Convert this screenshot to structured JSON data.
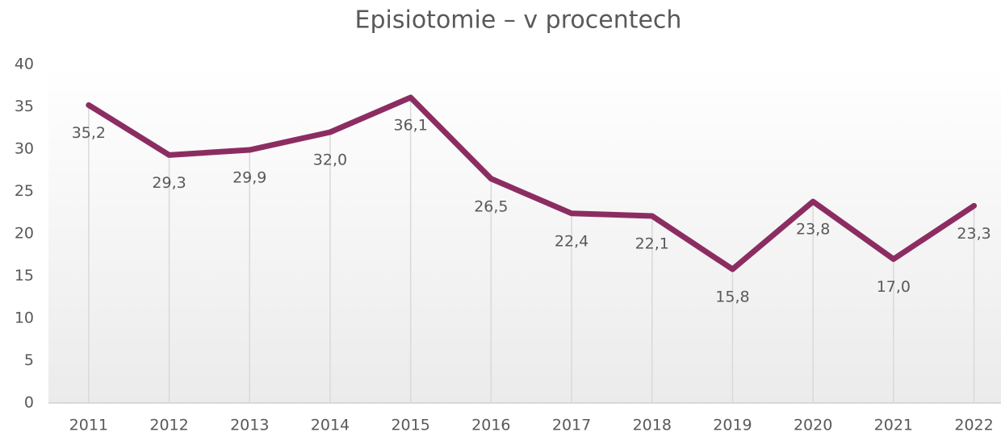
{
  "chart_data": {
    "type": "line",
    "title": "Episiotomie – v procentech",
    "categories": [
      "2011",
      "2012",
      "2013",
      "2014",
      "2015",
      "2016",
      "2017",
      "2018",
      "2019",
      "2020",
      "2021",
      "2022"
    ],
    "series": [
      {
        "name": "Episiotomie",
        "color": "#8c2d62",
        "values": [
          35.2,
          29.3,
          29.9,
          32.0,
          36.1,
          26.5,
          22.4,
          22.1,
          15.8,
          23.8,
          17.0,
          23.3
        ],
        "value_labels": [
          "35,2",
          "29,3",
          "29,9",
          "32,0",
          "36,1",
          "26,5",
          "22,4",
          "22,1",
          "15,8",
          "23,8",
          "17,0",
          "23,3"
        ]
      }
    ],
    "ylim": [
      0,
      40
    ],
    "yticks": [
      0,
      5,
      10,
      15,
      20,
      25,
      30,
      35,
      40
    ],
    "drop_lines": true
  }
}
